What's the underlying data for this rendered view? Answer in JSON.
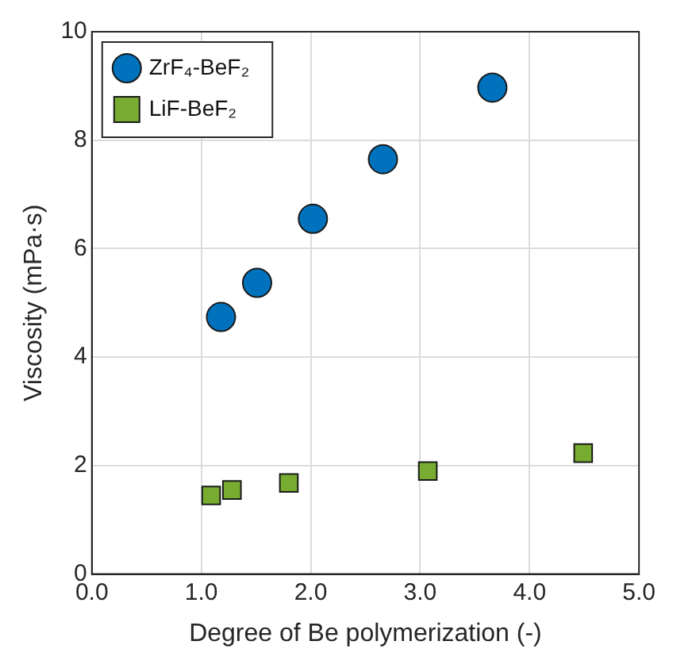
{
  "chart_data": {
    "type": "scatter",
    "xlabel": "Degree of Be polymerization (-)",
    "ylabel": "Viscosity (mPa·s)",
    "xlim": [
      0,
      5
    ],
    "xticks": [
      {
        "value": 0,
        "label": "0.0"
      },
      {
        "value": 1,
        "label": "1.0"
      },
      {
        "value": 2,
        "label": "2.0"
      },
      {
        "value": 3,
        "label": "3.0"
      },
      {
        "value": 4,
        "label": "4.0"
      },
      {
        "value": 5,
        "label": "5.0"
      }
    ],
    "ylim": [
      0,
      10
    ],
    "yticks": [
      0,
      2,
      4,
      6,
      8,
      10
    ],
    "grid": true,
    "legend": "top left",
    "series": [
      {
        "name": "ZrF₄-BeF₂",
        "color": "#0072bd",
        "marker": "circle",
        "x": [
          1.18,
          1.51,
          2.02,
          2.66,
          3.66
        ],
        "values": [
          4.74,
          5.37,
          6.55,
          7.65,
          8.97
        ]
      },
      {
        "name": "LiF-BeF₂",
        "color": "#77ac30",
        "marker": "square",
        "x": [
          1.09,
          1.28,
          1.8,
          3.07,
          4.49
        ],
        "values": [
          1.45,
          1.55,
          1.68,
          1.9,
          2.23
        ]
      }
    ]
  }
}
